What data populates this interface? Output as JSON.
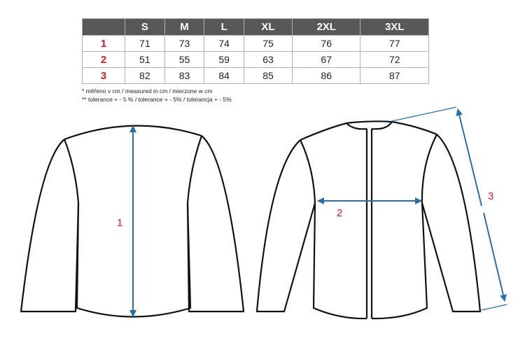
{
  "size_table": {
    "headers": [
      "",
      "S",
      "M",
      "L",
      "XL",
      "2XL",
      "3XL"
    ],
    "rows": [
      {
        "label": "1",
        "values": [
          "71",
          "73",
          "74",
          "75",
          "76",
          "77"
        ]
      },
      {
        "label": "2",
        "values": [
          "51",
          "55",
          "59",
          "63",
          "67",
          "72"
        ]
      },
      {
        "label": "3",
        "values": [
          "82",
          "83",
          "84",
          "85",
          "86",
          "87"
        ]
      }
    ]
  },
  "notes": [
    "* měřeno v cm / measured in cm / mierzone w cm",
    "** tolerance + - 5 % / tolerance + - 5% / tolerancja + - 5%"
  ],
  "diagram": {
    "measure_labels": [
      "1",
      "2",
      "3"
    ],
    "colors": {
      "outline": "#111111",
      "arrow": "#2a6fa8",
      "label": "#c8202a",
      "header": "#58585a"
    }
  }
}
